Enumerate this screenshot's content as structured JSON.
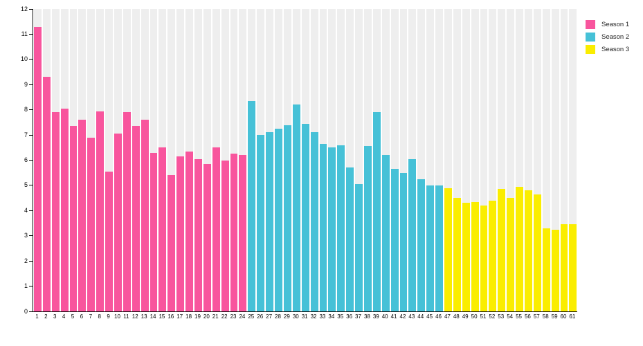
{
  "chart_data": {
    "type": "bar",
    "title": "",
    "xlabel": "",
    "ylabel": "",
    "ylim": [
      0,
      12
    ],
    "yticks": [
      0,
      1,
      2,
      3,
      4,
      5,
      6,
      7,
      8,
      9,
      10,
      11,
      12
    ],
    "grid": "vertical-column-stripes",
    "stripe_color": "#eeeeee",
    "axis_color": "#000000",
    "legend_position": "top-right",
    "categories": [
      "1",
      "2",
      "3",
      "4",
      "5",
      "6",
      "7",
      "8",
      "9",
      "10",
      "11",
      "12",
      "13",
      "14",
      "15",
      "16",
      "17",
      "18",
      "19",
      "20",
      "21",
      "22",
      "23",
      "24",
      "25",
      "26",
      "27",
      "28",
      "29",
      "30",
      "31",
      "32",
      "33",
      "34",
      "35",
      "36",
      "37",
      "38",
      "39",
      "40",
      "41",
      "42",
      "43",
      "44",
      "45",
      "46",
      "47",
      "48",
      "49",
      "50",
      "51",
      "52",
      "53",
      "54",
      "55",
      "56",
      "57",
      "58",
      "59",
      "60",
      "61"
    ],
    "series": [
      {
        "name": "Season 1",
        "color": "#f8559d",
        "x_range": [
          1,
          24
        ],
        "values": [
          11.3,
          9.3,
          7.9,
          8.05,
          7.35,
          7.6,
          6.9,
          7.95,
          5.55,
          7.05,
          7.9,
          7.35,
          7.6,
          6.3,
          6.5,
          5.4,
          6.15,
          6.35,
          6.05,
          5.85,
          6.5,
          6.0,
          6.25,
          6.2
        ]
      },
      {
        "name": "Season 2",
        "color": "#46c1d7",
        "x_range": [
          25,
          46
        ],
        "values": [
          8.35,
          7.0,
          7.1,
          7.25,
          7.4,
          8.2,
          7.45,
          7.1,
          6.65,
          6.5,
          6.6,
          5.7,
          5.05,
          6.55,
          7.9,
          6.2,
          5.65,
          5.5,
          6.05,
          5.25,
          5.0,
          5.0
        ]
      },
      {
        "name": "Season 3",
        "color": "#faed00",
        "x_range": [
          47,
          61
        ],
        "values": [
          4.9,
          4.5,
          4.3,
          4.35,
          4.2,
          4.4,
          4.85,
          4.5,
          4.95,
          4.8,
          4.65,
          3.3,
          3.25,
          3.45,
          3.45
        ]
      }
    ]
  }
}
